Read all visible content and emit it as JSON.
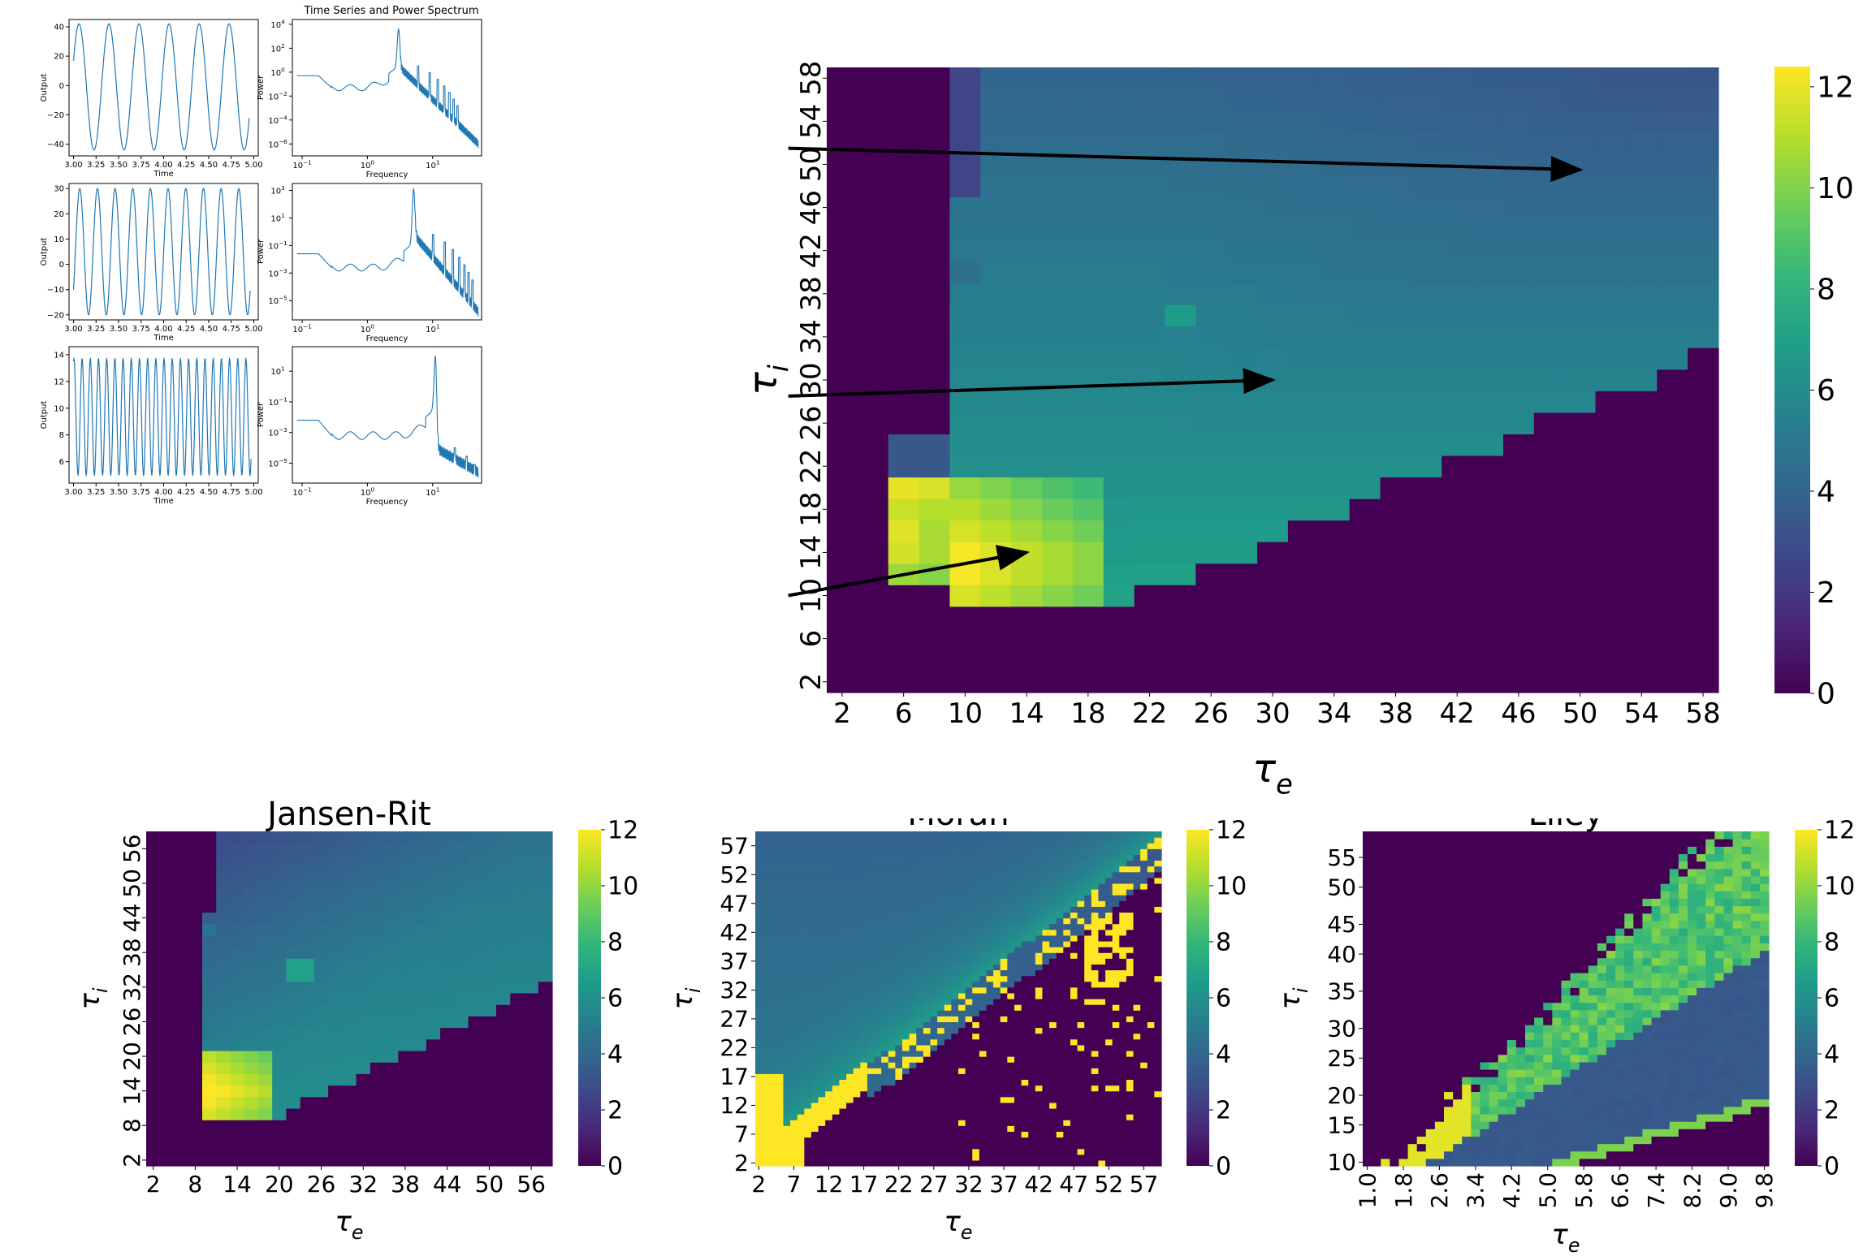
{
  "figure": {
    "title": "Time Series and Power Spectrum",
    "colors": {
      "line": "#1f77b4",
      "arrow": "#000000",
      "viridis": [
        "#440154",
        "#482878",
        "#3e4989",
        "#31688e",
        "#26828e",
        "#1f9e89",
        "#35b779",
        "#6ece58",
        "#b5de2b",
        "#fde725"
      ]
    }
  },
  "chart_data": [
    {
      "id": "ts1",
      "type": "line",
      "panel": "time-series",
      "xlabel": "Time",
      "ylabel": "Output",
      "xlim": [
        2.95,
        5.05
      ],
      "ylim": [
        -48,
        45
      ],
      "xticks": [
        3.0,
        3.25,
        3.5,
        3.75,
        4.0,
        4.25,
        4.5,
        4.75,
        5.0
      ],
      "yticks": [
        -40,
        -20,
        0,
        20,
        40
      ],
      "signal": {
        "t0": 3.0,
        "t1": 4.95,
        "freq": 3.0,
        "min": -44,
        "max": 42,
        "start": 17,
        "end": -35
      }
    },
    {
      "id": "ps1",
      "type": "line",
      "panel": "power-spectrum",
      "log": true,
      "xlabel": "Frequency",
      "ylabel": "Power",
      "xlim_log10": [
        -1.15,
        1.75
      ],
      "ylim_log10": [
        -7.0,
        4.4
      ],
      "xticks_log10": [
        -1,
        0,
        1
      ],
      "yticks_log10": [
        -6,
        -4,
        -2,
        0,
        2,
        4
      ],
      "spectrum": {
        "base": -1.3,
        "peak_f": 3.0,
        "peak_val": 3.6,
        "harm_val": 0.5,
        "end_val": -6.0
      }
    },
    {
      "id": "ts2",
      "type": "line",
      "panel": "time-series",
      "xlabel": "Time",
      "ylabel": "Output",
      "xlim": [
        2.95,
        5.05
      ],
      "ylim": [
        -22,
        32
      ],
      "xticks": [
        3.0,
        3.25,
        3.5,
        3.75,
        4.0,
        4.25,
        4.5,
        4.75,
        5.0
      ],
      "yticks": [
        -20,
        -10,
        0,
        10,
        20,
        30
      ],
      "signal": {
        "t0": 3.0,
        "t1": 4.96,
        "freq": 5.1,
        "min": -20,
        "max": 30,
        "start": -10,
        "end": -10
      }
    },
    {
      "id": "ps2",
      "type": "line",
      "panel": "power-spectrum",
      "log": true,
      "xlabel": "Frequency",
      "ylabel": "Power",
      "xlim_log10": [
        -1.15,
        1.75
      ],
      "ylim_log10": [
        -6.4,
        3.5
      ],
      "xticks_log10": [
        -1,
        0,
        1
      ],
      "yticks_log10": [
        -5,
        -3,
        -1,
        1,
        3
      ],
      "spectrum": {
        "base": -2.6,
        "peak_f": 5.1,
        "peak_val": 3.1,
        "harm_val": -0.2,
        "end_val": -5.8
      }
    },
    {
      "id": "ts3",
      "type": "line",
      "panel": "time-series",
      "xlabel": "Time",
      "ylabel": "Output",
      "xlim": [
        2.95,
        5.05
      ],
      "ylim": [
        4.4,
        14.6
      ],
      "xticks": [
        3.0,
        3.25,
        3.5,
        3.75,
        4.0,
        4.25,
        4.5,
        4.75,
        5.0
      ],
      "yticks": [
        6,
        8,
        10,
        12,
        14
      ],
      "signal": {
        "t0": 3.0,
        "t1": 4.97,
        "freq": 11.0,
        "min": 5.0,
        "max": 13.7,
        "start": 13.5,
        "end": 13.5
      }
    },
    {
      "id": "ps3",
      "type": "line",
      "panel": "power-spectrum",
      "log": true,
      "xlabel": "Frequency",
      "ylabel": "Power",
      "xlim_log10": [
        -1.15,
        1.75
      ],
      "ylim_log10": [
        -6.3,
        2.6
      ],
      "xticks_log10": [
        -1,
        0,
        1
      ],
      "yticks_log10": [
        -5,
        -3,
        -1,
        1
      ],
      "spectrum": {
        "base": -3.2,
        "peak_f": 11.0,
        "peak_val": 2.0,
        "harm_val": -4.0,
        "end_val": -5.6
      }
    },
    {
      "id": "hm-main",
      "type": "heatmap",
      "model": "jr",
      "xlabel": "τ",
      "xlabel_sub": "e",
      "ylabel": "τ",
      "ylabel_sub": "i",
      "x_range": [
        2,
        58
      ],
      "y_range": [
        2,
        58
      ],
      "n": 29,
      "clim": [
        0,
        12.4
      ],
      "xticks": [
        "2",
        "6",
        "10",
        "14",
        "18",
        "22",
        "26",
        "30",
        "34",
        "38",
        "42",
        "46",
        "50",
        "54",
        "58"
      ],
      "yticks": [
        "2",
        "6",
        "10",
        "14",
        "18",
        "22",
        "26",
        "30",
        "34",
        "38",
        "42",
        "46",
        "50",
        "54",
        "58"
      ],
      "colorbar_ticks": [
        "0",
        "2",
        "4",
        "6",
        "8",
        "10",
        "12"
      ],
      "arrows": [
        {
          "from": [
            -1.5,
            51.5
          ],
          "to": [
            50,
            49.5
          ]
        },
        {
          "from": [
            -1.5,
            28.5
          ],
          "to": [
            30,
            30
          ]
        },
        {
          "from": [
            -1.5,
            10
          ],
          "to": [
            14,
            14
          ]
        }
      ]
    },
    {
      "id": "hm-jr",
      "type": "heatmap",
      "model": "jr",
      "title": "Jansen-Rit",
      "xlabel": "τ",
      "xlabel_sub": "e",
      "ylabel": "τ",
      "ylabel_sub": "i",
      "x_range": [
        2,
        58
      ],
      "y_range": [
        2,
        58
      ],
      "n": 29,
      "clim": [
        0,
        12
      ],
      "xticks": [
        "2",
        "8",
        "14",
        "20",
        "26",
        "32",
        "38",
        "44",
        "50",
        "56"
      ],
      "yticks": [
        "2",
        "8",
        "14",
        "20",
        "26",
        "32",
        "38",
        "44",
        "50",
        "56"
      ],
      "colorbar_ticks": [
        "0",
        "2",
        "4",
        "6",
        "8",
        "10",
        "12"
      ]
    },
    {
      "id": "hm-moran",
      "type": "heatmap",
      "model": "moran",
      "title": "Moran",
      "xlabel": "τ",
      "xlabel_sub": "e",
      "ylabel": "τ",
      "ylabel_sub": "i",
      "x_range": [
        2,
        59
      ],
      "y_range": [
        2,
        59
      ],
      "n": 58,
      "clim": [
        0,
        12
      ],
      "xticks": [
        "2",
        "7",
        "12",
        "17",
        "22",
        "27",
        "32",
        "37",
        "42",
        "47",
        "52",
        "57"
      ],
      "yticks": [
        "2",
        "7",
        "12",
        "17",
        "22",
        "27",
        "32",
        "37",
        "42",
        "47",
        "52",
        "57"
      ],
      "colorbar_ticks": [
        "0",
        "2",
        "4",
        "6",
        "8",
        "10",
        "12"
      ]
    },
    {
      "id": "hm-liley",
      "type": "heatmap",
      "model": "liley",
      "title": "Liley",
      "xlabel": "τ",
      "xlabel_sub": "e",
      "ylabel": "τ",
      "ylabel_sub": "i",
      "x_range": [
        1.0,
        9.8
      ],
      "y_range": [
        10,
        58
      ],
      "n": 45,
      "clim": [
        0,
        12
      ],
      "xticks": [
        "1.0",
        "1.8",
        "2.6",
        "3.4",
        "4.2",
        "5.0",
        "5.8",
        "6.6",
        "7.4",
        "8.2",
        "9.0",
        "9.8"
      ],
      "yticks": [
        "10",
        "15",
        "20",
        "25",
        "30",
        "35",
        "40",
        "45",
        "50",
        "55"
      ],
      "colorbar_ticks": [
        "0",
        "2",
        "4",
        "6",
        "8",
        "10",
        "12"
      ]
    }
  ]
}
